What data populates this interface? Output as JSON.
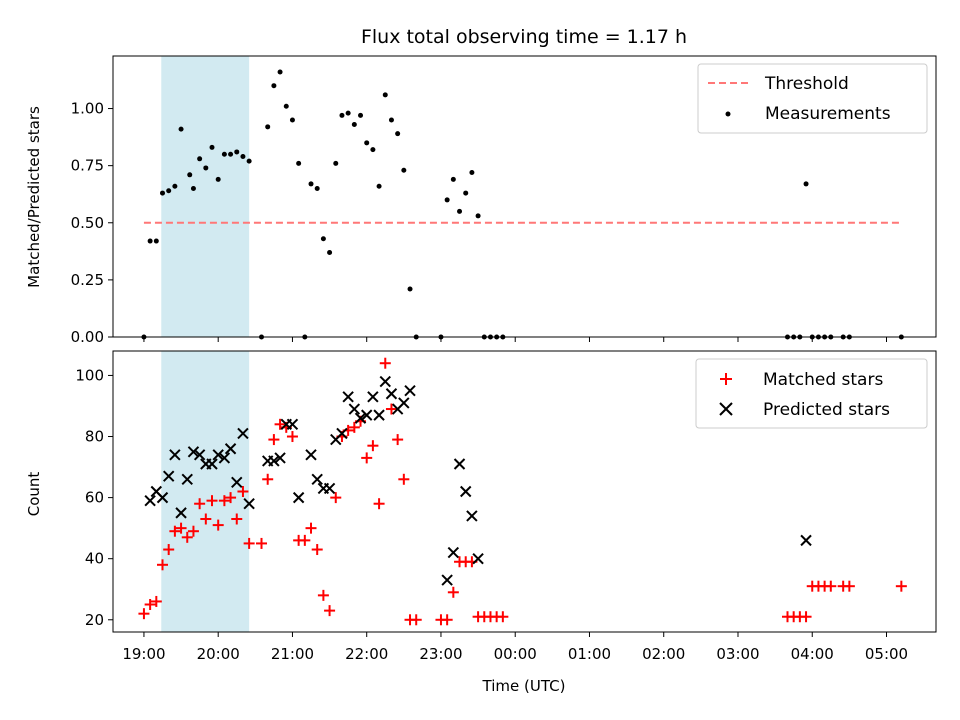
{
  "chart_data": [
    {
      "type": "scatter",
      "title": "Flux total observing time = 1.17 h",
      "xlabel": "",
      "ylabel": "Matched/Predicted stars",
      "ylim": [
        0,
        1.23
      ],
      "xlim": [
        "18:35",
        "05:40"
      ],
      "yticks": [
        "0.00",
        "0.25",
        "0.50",
        "0.75",
        "1.00"
      ],
      "shaded_region": [
        "19:14",
        "20:25"
      ],
      "shaded_color": "#add8e6",
      "legend_position": "top-right",
      "series": [
        {
          "name": "Threshold",
          "style": "dashed-line",
          "color": "#ff7777",
          "x": [
            "19:00",
            "05:12"
          ],
          "y": [
            0.5,
            0.5
          ]
        },
        {
          "name": "Measurements",
          "style": "dot",
          "color": "#000000",
          "points": [
            [
              "19:00",
              0.0
            ],
            [
              "19:05",
              0.42
            ],
            [
              "19:10",
              0.42
            ],
            [
              "19:15",
              0.63
            ],
            [
              "19:20",
              0.64
            ],
            [
              "19:25",
              0.66
            ],
            [
              "19:30",
              0.91
            ],
            [
              "19:37",
              0.71
            ],
            [
              "19:40",
              0.65
            ],
            [
              "19:45",
              0.78
            ],
            [
              "19:50",
              0.74
            ],
            [
              "19:55",
              0.83
            ],
            [
              "20:00",
              0.69
            ],
            [
              "20:05",
              0.8
            ],
            [
              "20:10",
              0.8
            ],
            [
              "20:15",
              0.81
            ],
            [
              "20:20",
              0.79
            ],
            [
              "20:25",
              0.77
            ],
            [
              "20:35",
              0.0
            ],
            [
              "20:40",
              0.92
            ],
            [
              "20:45",
              1.1
            ],
            [
              "20:50",
              1.16
            ],
            [
              "20:55",
              1.01
            ],
            [
              "21:00",
              0.95
            ],
            [
              "21:05",
              0.76
            ],
            [
              "21:10",
              0.0
            ],
            [
              "21:15",
              0.67
            ],
            [
              "21:20",
              0.65
            ],
            [
              "21:25",
              0.43
            ],
            [
              "21:30",
              0.37
            ],
            [
              "21:35",
              0.76
            ],
            [
              "21:40",
              0.97
            ],
            [
              "21:45",
              0.98
            ],
            [
              "21:50",
              0.93
            ],
            [
              "21:55",
              0.97
            ],
            [
              "22:00",
              0.85
            ],
            [
              "22:05",
              0.82
            ],
            [
              "22:10",
              0.66
            ],
            [
              "22:15",
              1.06
            ],
            [
              "22:20",
              0.95
            ],
            [
              "22:25",
              0.89
            ],
            [
              "22:30",
              0.73
            ],
            [
              "22:35",
              0.21
            ],
            [
              "22:40",
              0.0
            ],
            [
              "23:00",
              0.0
            ],
            [
              "23:05",
              0.6
            ],
            [
              "23:10",
              0.69
            ],
            [
              "23:15",
              0.55
            ],
            [
              "23:20",
              0.63
            ],
            [
              "23:25",
              0.72
            ],
            [
              "23:30",
              0.53
            ],
            [
              "23:35",
              0.0
            ],
            [
              "23:40",
              0.0
            ],
            [
              "23:45",
              0.0
            ],
            [
              "23:50",
              0.0
            ],
            [
              "03:40",
              0.0
            ],
            [
              "03:45",
              0.0
            ],
            [
              "03:50",
              0.0
            ],
            [
              "03:55",
              0.67
            ],
            [
              "04:00",
              0.0
            ],
            [
              "04:05",
              0.0
            ],
            [
              "04:10",
              0.0
            ],
            [
              "04:15",
              0.0
            ],
            [
              "04:25",
              0.0
            ],
            [
              "04:30",
              0.0
            ],
            [
              "05:12",
              0.0
            ]
          ]
        }
      ]
    },
    {
      "type": "scatter",
      "xlabel": "Time (UTC)",
      "ylabel": "Count",
      "ylim": [
        16,
        108
      ],
      "xlim": [
        "18:35",
        "05:40"
      ],
      "yticks": [
        "20",
        "40",
        "60",
        "80",
        "100"
      ],
      "xticks": [
        "19:00",
        "20:00",
        "21:00",
        "22:00",
        "23:00",
        "00:00",
        "01:00",
        "02:00",
        "03:00",
        "04:00",
        "05:00"
      ],
      "shaded_region": [
        "19:14",
        "20:25"
      ],
      "shaded_color": "#add8e6",
      "legend_position": "top-right",
      "series": [
        {
          "name": "Matched stars",
          "marker": "+",
          "color": "#ff0000",
          "points": [
            [
              "19:00",
              22
            ],
            [
              "19:05",
              25
            ],
            [
              "19:10",
              26
            ],
            [
              "19:15",
              38
            ],
            [
              "19:20",
              43
            ],
            [
              "19:25",
              49
            ],
            [
              "19:30",
              50
            ],
            [
              "19:35",
              47
            ],
            [
              "19:40",
              49
            ],
            [
              "19:45",
              58
            ],
            [
              "19:50",
              53
            ],
            [
              "19:55",
              59
            ],
            [
              "20:00",
              51
            ],
            [
              "20:05",
              59
            ],
            [
              "20:10",
              60
            ],
            [
              "20:15",
              53
            ],
            [
              "20:20",
              62
            ],
            [
              "20:25",
              45
            ],
            [
              "20:35",
              45
            ],
            [
              "20:40",
              66
            ],
            [
              "20:45",
              79
            ],
            [
              "20:50",
              84
            ],
            [
              "20:55",
              83
            ],
            [
              "21:00",
              80
            ],
            [
              "21:05",
              46
            ],
            [
              "21:10",
              46
            ],
            [
              "21:15",
              50
            ],
            [
              "21:20",
              43
            ],
            [
              "21:25",
              28
            ],
            [
              "21:30",
              23
            ],
            [
              "21:35",
              60
            ],
            [
              "21:40",
              80
            ],
            [
              "21:45",
              82
            ],
            [
              "21:50",
              83
            ],
            [
              "21:55",
              85
            ],
            [
              "22:00",
              73
            ],
            [
              "22:05",
              77
            ],
            [
              "22:10",
              58
            ],
            [
              "22:15",
              104
            ],
            [
              "22:20",
              89
            ],
            [
              "22:25",
              79
            ],
            [
              "22:30",
              66
            ],
            [
              "22:35",
              20
            ],
            [
              "22:40",
              20
            ],
            [
              "23:00",
              20
            ],
            [
              "23:05",
              20
            ],
            [
              "23:10",
              29
            ],
            [
              "23:15",
              39
            ],
            [
              "23:20",
              39
            ],
            [
              "23:25",
              39
            ],
            [
              "23:30",
              21
            ],
            [
              "23:35",
              21
            ],
            [
              "23:40",
              21
            ],
            [
              "23:45",
              21
            ],
            [
              "23:50",
              21
            ],
            [
              "03:40",
              21
            ],
            [
              "03:45",
              21
            ],
            [
              "03:50",
              21
            ],
            [
              "03:55",
              21
            ],
            [
              "04:00",
              31
            ],
            [
              "04:05",
              31
            ],
            [
              "04:10",
              31
            ],
            [
              "04:15",
              31
            ],
            [
              "04:25",
              31
            ],
            [
              "04:30",
              31
            ],
            [
              "05:12",
              31
            ]
          ]
        },
        {
          "name": "Predicted stars",
          "marker": "x",
          "color": "#000000",
          "points": [
            [
              "19:05",
              59
            ],
            [
              "19:10",
              62
            ],
            [
              "19:15",
              60
            ],
            [
              "19:20",
              67
            ],
            [
              "19:25",
              74
            ],
            [
              "19:30",
              55
            ],
            [
              "19:35",
              66
            ],
            [
              "19:40",
              75
            ],
            [
              "19:45",
              74
            ],
            [
              "19:50",
              71
            ],
            [
              "19:55",
              71
            ],
            [
              "20:00",
              74
            ],
            [
              "20:05",
              73
            ],
            [
              "20:10",
              76
            ],
            [
              "20:15",
              65
            ],
            [
              "20:20",
              81
            ],
            [
              "20:25",
              58
            ],
            [
              "20:40",
              72
            ],
            [
              "20:45",
              72
            ],
            [
              "20:50",
              73
            ],
            [
              "20:55",
              84
            ],
            [
              "21:00",
              84
            ],
            [
              "21:05",
              60
            ],
            [
              "21:15",
              74
            ],
            [
              "21:20",
              66
            ],
            [
              "21:25",
              63
            ],
            [
              "21:30",
              63
            ],
            [
              "21:35",
              79
            ],
            [
              "21:40",
              81
            ],
            [
              "21:45",
              93
            ],
            [
              "21:50",
              89
            ],
            [
              "21:55",
              86
            ],
            [
              "22:00",
              87
            ],
            [
              "22:05",
              93
            ],
            [
              "22:10",
              87
            ],
            [
              "22:15",
              98
            ],
            [
              "22:20",
              94
            ],
            [
              "22:25",
              89
            ],
            [
              "22:30",
              91
            ],
            [
              "22:35",
              95
            ],
            [
              "23:05",
              33
            ],
            [
              "23:10",
              42
            ],
            [
              "23:15",
              71
            ],
            [
              "23:20",
              62
            ],
            [
              "23:25",
              54
            ],
            [
              "23:30",
              40
            ],
            [
              "03:55",
              46
            ]
          ]
        }
      ]
    }
  ]
}
